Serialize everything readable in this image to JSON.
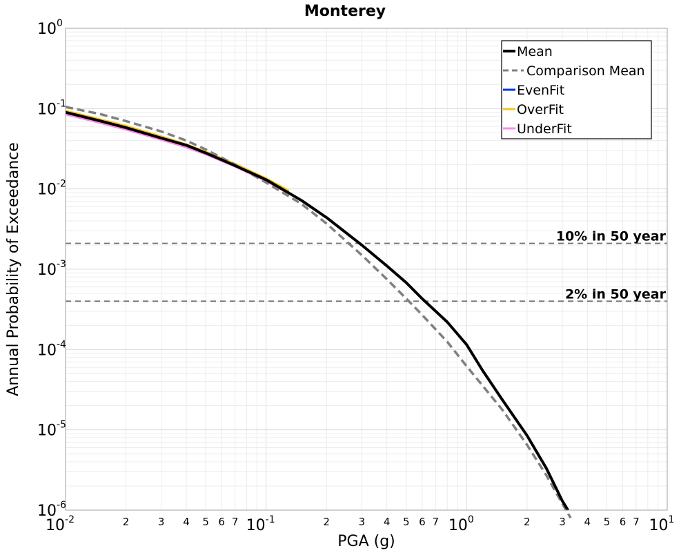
{
  "chart_data": {
    "type": "line",
    "title": "Monterey",
    "xlabel": "PGA (g)",
    "ylabel": "Annual Probability of Exceedance",
    "xscale": "log",
    "yscale": "log",
    "xlim": [
      0.01,
      10
    ],
    "ylim": [
      1e-06,
      1
    ],
    "grid": true,
    "legend_position": "top-right",
    "x_major_ticks": [
      {
        "value": 0.01,
        "base": "10",
        "exp": "-2"
      },
      {
        "value": 0.1,
        "base": "10",
        "exp": "-1"
      },
      {
        "value": 1,
        "base": "10",
        "exp": "0"
      },
      {
        "value": 10,
        "base": "10",
        "exp": "1"
      }
    ],
    "x_minor_tick_labels": [
      "2",
      "3",
      "4",
      "5",
      "6",
      "7"
    ],
    "y_major_ticks": [
      {
        "value": 1,
        "base": "10",
        "exp": "0"
      },
      {
        "value": 0.1,
        "base": "10",
        "exp": "-1"
      },
      {
        "value": 0.01,
        "base": "10",
        "exp": "-2"
      },
      {
        "value": 0.001,
        "base": "10",
        "exp": "-3"
      },
      {
        "value": 0.0001,
        "base": "10",
        "exp": "-4"
      },
      {
        "value": 1e-05,
        "base": "10",
        "exp": "-5"
      },
      {
        "value": 1e-06,
        "base": "10",
        "exp": "-6"
      }
    ],
    "reference_lines": [
      {
        "label": "10% in 50 year",
        "y": 0.0021
      },
      {
        "label": "2% in 50 year",
        "y": 0.0004
      }
    ],
    "series": [
      {
        "name": "UnderFit",
        "color": "#ff88ee",
        "style": "solid",
        "x": [
          0.01,
          0.015,
          0.02,
          0.03,
          0.04,
          0.05,
          0.07,
          0.1,
          0.13
        ],
        "y": [
          0.085,
          0.066,
          0.055,
          0.041,
          0.033,
          0.027,
          0.019,
          0.0125,
          0.0088
        ]
      },
      {
        "name": "EvenFit",
        "color": "#0033ee",
        "style": "solid",
        "x": [
          0.01,
          0.015,
          0.02,
          0.03,
          0.04,
          0.05,
          0.07,
          0.1,
          0.13
        ],
        "y": [
          0.09,
          0.07,
          0.058,
          0.043,
          0.035,
          0.028,
          0.0195,
          0.013,
          0.009
        ]
      },
      {
        "name": "OverFit",
        "color": "#f5c518",
        "style": "solid",
        "x": [
          0.01,
          0.015,
          0.02,
          0.03,
          0.04,
          0.05,
          0.07,
          0.1,
          0.13
        ],
        "y": [
          0.094,
          0.073,
          0.061,
          0.045,
          0.036,
          0.029,
          0.0205,
          0.0135,
          0.0095
        ]
      },
      {
        "name": "Comparison Mean",
        "color": "#808080",
        "style": "dashed",
        "x": [
          0.01,
          0.015,
          0.02,
          0.03,
          0.04,
          0.05,
          0.07,
          0.1,
          0.15,
          0.2,
          0.3,
          0.4,
          0.5,
          0.6,
          0.8,
          1.0,
          1.5,
          2.0,
          2.5,
          3.0,
          3.3
        ],
        "y": [
          0.105,
          0.085,
          0.07,
          0.052,
          0.04,
          0.031,
          0.02,
          0.012,
          0.0065,
          0.0037,
          0.0015,
          0.00075,
          0.00043,
          0.00027,
          0.000125,
          6.2e-05,
          1.8e-05,
          6.5e-06,
          2.7e-06,
          1.2e-06,
          8e-07
        ]
      },
      {
        "name": "Mean",
        "color": "#000000",
        "style": "solid",
        "x": [
          0.01,
          0.015,
          0.02,
          0.03,
          0.04,
          0.05,
          0.07,
          0.1,
          0.15,
          0.2,
          0.3,
          0.4,
          0.5,
          0.6,
          0.8,
          1.0,
          1.2,
          1.5,
          2.0,
          2.5,
          3.0,
          3.2
        ],
        "y": [
          0.09,
          0.07,
          0.058,
          0.043,
          0.035,
          0.028,
          0.0195,
          0.013,
          0.0072,
          0.0044,
          0.002,
          0.0011,
          0.00068,
          0.00043,
          0.00022,
          0.000115,
          5.5e-05,
          2.4e-05,
          8.5e-06,
          3.3e-06,
          1.3e-06,
          1e-06
        ]
      }
    ],
    "legend": [
      {
        "name": "Mean",
        "color": "#000000",
        "style": "solid"
      },
      {
        "name": "Comparison Mean",
        "color": "#808080",
        "style": "dashed"
      },
      {
        "name": "EvenFit",
        "color": "#0033ee",
        "style": "solid"
      },
      {
        "name": "OverFit",
        "color": "#f5c518",
        "style": "solid"
      },
      {
        "name": "UnderFit",
        "color": "#ff88ee",
        "style": "solid"
      }
    ]
  }
}
